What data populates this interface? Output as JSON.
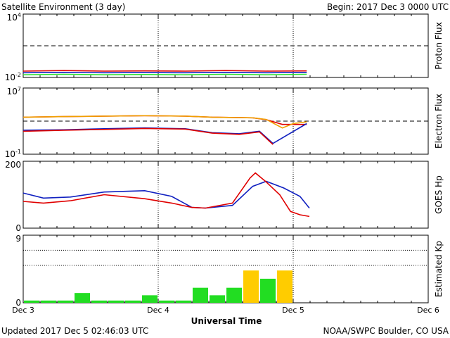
{
  "header": {
    "title": "Satellite Environment (3 day)",
    "begin": "Begin:  2017 Dec 3 0000 UTC"
  },
  "footer": {
    "updated": "Updated 2017 Dec  5 02:46:03 UTC",
    "source": "NOAA/SWPC Boulder, CO USA"
  },
  "colors": {
    "red": "#e00000",
    "blue": "#1020c0",
    "green": "#30e030",
    "orange": "#f0a000",
    "kp_yellow": "#ffcc00",
    "kp_green": "#22dd22"
  },
  "chart_data": [
    {
      "type": "line",
      "name": "proton-flux",
      "ylabel": "Proton Flux",
      "y_scale": "log",
      "ylim": [
        0.01,
        10000
      ],
      "ytick_labels": [
        "10^4",
        "10^-2"
      ],
      "threshold": 10,
      "series": [
        {
          "color": "red",
          "x": [
            0,
            0.3,
            0.6,
            0.9,
            1.2,
            1.5,
            1.8,
            2.1
          ],
          "y": [
            0.04,
            0.045,
            0.04,
            0.042,
            0.04,
            0.045,
            0.04,
            0.042
          ]
        },
        {
          "color": "blue",
          "x": [
            0,
            0.3,
            0.6,
            0.9,
            1.2,
            1.5,
            1.8,
            2.1
          ],
          "y": [
            0.028,
            0.03,
            0.028,
            0.029,
            0.028,
            0.03,
            0.028,
            0.03
          ]
        },
        {
          "color": "green",
          "x": [
            0,
            0.3,
            0.6,
            0.9,
            1.2,
            1.5,
            1.8,
            2.1
          ],
          "y": [
            0.018,
            0.02,
            0.018,
            0.019,
            0.018,
            0.02,
            0.018,
            0.02
          ]
        }
      ]
    },
    {
      "type": "line",
      "name": "electron-flux",
      "ylabel": "Electron Flux",
      "y_scale": "log",
      "ylim": [
        0.1,
        10000000
      ],
      "ytick_labels": [
        "10^7",
        "10^-1"
      ],
      "threshold": 1000,
      "series": [
        {
          "color": "red",
          "x": [
            0,
            0.3,
            0.6,
            0.9,
            1.2,
            1.4,
            1.7,
            1.8,
            1.92,
            2.1
          ],
          "y": [
            3000,
            3500,
            4000,
            4500,
            4000,
            3000,
            2500,
            1500,
            400,
            400
          ]
        },
        {
          "color": "orange",
          "x": [
            0,
            0.3,
            0.6,
            0.9,
            1.2,
            1.4,
            1.7,
            1.8,
            1.92,
            2.0,
            2.1
          ],
          "y": [
            3000,
            3500,
            4000,
            4500,
            4000,
            3000,
            2500,
            1600,
            150,
            500,
            800
          ]
        },
        {
          "color": "blue",
          "x": [
            0,
            0.3,
            0.6,
            0.9,
            1.2,
            1.4,
            1.6,
            1.75,
            1.85,
            2.1
          ],
          "y": [
            80,
            90,
            120,
            150,
            120,
            40,
            30,
            60,
            2,
            500
          ]
        },
        {
          "color": "red",
          "x": [
            0,
            0.3,
            0.6,
            0.9,
            1.2,
            1.4,
            1.6,
            1.75,
            1.85
          ],
          "y": [
            60,
            80,
            100,
            130,
            110,
            35,
            25,
            50,
            1.5
          ]
        }
      ]
    },
    {
      "type": "line",
      "name": "goes-hp",
      "ylabel": "GOES Hp",
      "ylim": [
        0,
        200
      ],
      "ytick_labels": [
        "200",
        "0"
      ],
      "series": [
        {
          "color": "blue",
          "x": [
            0,
            0.15,
            0.35,
            0.6,
            0.9,
            1.1,
            1.25,
            1.35,
            1.55,
            1.7,
            1.8,
            1.93,
            2.05,
            2.12
          ],
          "y": [
            105,
            90,
            93,
            108,
            112,
            95,
            62,
            60,
            68,
            125,
            140,
            120,
            95,
            60
          ]
        },
        {
          "color": "red",
          "x": [
            0,
            0.15,
            0.35,
            0.6,
            0.9,
            1.1,
            1.25,
            1.35,
            1.55,
            1.68,
            1.72,
            1.8,
            1.9,
            1.98,
            2.05,
            2.12
          ],
          "y": [
            80,
            75,
            82,
            100,
            88,
            75,
            62,
            60,
            75,
            150,
            165,
            138,
            100,
            50,
            40,
            35
          ]
        }
      ]
    },
    {
      "type": "bar",
      "name": "estimated-kp",
      "ylabel": "Estimated Kp",
      "ylim": [
        0,
        9
      ],
      "ytick_labels": [
        "9",
        "0"
      ],
      "bar_width_hours": 3,
      "values": [
        0.3,
        0.3,
        0.3,
        1.3,
        0.3,
        0.3,
        0.3,
        1.0,
        0.3,
        0.3,
        2.0,
        1.0,
        2.0,
        4.3,
        3.2,
        4.3
      ]
    }
  ],
  "x_axis": {
    "label": "Universal Time",
    "ticks": [
      "Dec 3",
      "Dec 4",
      "Dec 5",
      "Dec 6"
    ],
    "xlim_days": [
      0,
      3
    ]
  }
}
